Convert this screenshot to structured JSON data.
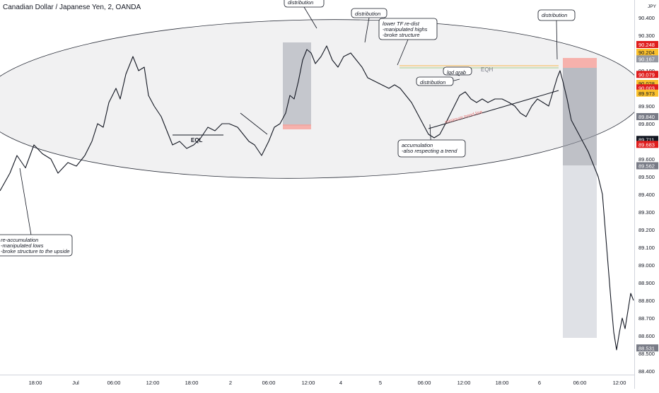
{
  "chart_title": "Canadian Dollar / Japanese Yen, 2, OANDA",
  "currency_unit": "JPY",
  "chart_data": {
    "type": "line",
    "title": "Canadian Dollar / Japanese Yen, 2, OANDA",
    "ylim": [
      88.4,
      90.45
    ],
    "y_ticks": [
      "90.400",
      "90.300",
      "90.100",
      "90.000",
      "89.900",
      "89.800",
      "89.700",
      "89.600",
      "89.500",
      "89.400",
      "89.300",
      "89.200",
      "89.100",
      "89.000",
      "88.900",
      "88.800",
      "88.700",
      "88.600",
      "88.500",
      "88.400"
    ],
    "x_tick_labels": [
      "18:00",
      "Jul",
      "06:00",
      "12:00",
      "18:00",
      "2",
      "06:00",
      "12:00",
      "4",
      "5",
      "06:00",
      "12:00",
      "18:00",
      "6",
      "06:00",
      "12:00"
    ],
    "price_tags": [
      {
        "value": "90.248",
        "color": "#e01d1d",
        "text_color": "#ffffff"
      },
      {
        "value": "90.204",
        "color": "#fbc02d",
        "text_color": "#131722"
      },
      {
        "value": "90.167",
        "color": "#9598a1",
        "text_color": "#ffffff"
      },
      {
        "value": "90.079",
        "color": "#e01d1d",
        "text_color": "#ffffff"
      },
      {
        "value": "90.028",
        "color": "#fbc02d",
        "text_color": "#131722"
      },
      {
        "value": "90.003",
        "color": "#e01d1d",
        "text_color": "#ffffff"
      },
      {
        "value": "89.973",
        "color": "#fbc02d",
        "text_color": "#131722"
      },
      {
        "value": "89.840",
        "color": "#787b86",
        "text_color": "#ffffff"
      },
      {
        "value": "89.711",
        "color": "#131722",
        "text_color": "#ffffff"
      },
      {
        "value": "89.683",
        "color": "#e01d1d",
        "text_color": "#ffffff"
      },
      {
        "value": "89.562",
        "color": "#787b86",
        "text_color": "#ffffff"
      },
      {
        "value": "88.531",
        "color": "#787b86",
        "text_color": "#ffffff"
      }
    ],
    "series": [
      {
        "points": [
          [
            0,
            89.42
          ],
          [
            14,
            89.52
          ],
          [
            24,
            89.62
          ],
          [
            36,
            89.55
          ],
          [
            48,
            89.68
          ],
          [
            60,
            89.63
          ],
          [
            72,
            89.6
          ],
          [
            82,
            89.52
          ],
          [
            96,
            89.58
          ],
          [
            108,
            89.56
          ],
          [
            120,
            89.62
          ],
          [
            130,
            89.7
          ],
          [
            138,
            89.8
          ],
          [
            146,
            89.78
          ],
          [
            154,
            89.92
          ],
          [
            164,
            90.0
          ],
          [
            170,
            89.94
          ],
          [
            178,
            90.08
          ],
          [
            188,
            90.18
          ],
          [
            196,
            90.1
          ],
          [
            204,
            90.12
          ],
          [
            210,
            89.96
          ],
          [
            218,
            89.9
          ],
          [
            228,
            89.84
          ],
          [
            236,
            89.76
          ],
          [
            244,
            89.68
          ],
          [
            254,
            89.7
          ],
          [
            264,
            89.66
          ],
          [
            274,
            89.68
          ],
          [
            284,
            89.72
          ],
          [
            294,
            89.78
          ],
          [
            304,
            89.76
          ],
          [
            314,
            89.8
          ],
          [
            324,
            89.8
          ],
          [
            336,
            89.78
          ],
          [
            344,
            89.74
          ],
          [
            352,
            89.7
          ],
          [
            360,
            89.68
          ],
          [
            370,
            89.62
          ],
          [
            380,
            89.7
          ],
          [
            388,
            89.78
          ],
          [
            396,
            89.8
          ],
          [
            404,
            89.86
          ],
          [
            410,
            89.96
          ],
          [
            416,
            89.94
          ],
          [
            422,
            90.04
          ],
          [
            428,
            90.16
          ],
          [
            434,
            90.22
          ],
          [
            440,
            90.2
          ],
          [
            446,
            90.14
          ],
          [
            454,
            90.18
          ],
          [
            462,
            90.24
          ],
          [
            470,
            90.16
          ],
          [
            478,
            90.12
          ],
          [
            486,
            90.18
          ],
          [
            496,
            90.2
          ],
          [
            504,
            90.16
          ],
          [
            512,
            90.12
          ],
          [
            520,
            90.06
          ],
          [
            530,
            90.04
          ],
          [
            540,
            90.02
          ],
          [
            550,
            90.0
          ],
          [
            558,
            90.02
          ],
          [
            566,
            90.0
          ],
          [
            574,
            89.96
          ],
          [
            582,
            89.92
          ],
          [
            590,
            89.86
          ],
          [
            598,
            89.8
          ],
          [
            606,
            89.74
          ],
          [
            614,
            89.72
          ],
          [
            622,
            89.74
          ],
          [
            630,
            89.8
          ],
          [
            640,
            89.88
          ],
          [
            650,
            89.96
          ],
          [
            658,
            89.98
          ],
          [
            666,
            89.94
          ],
          [
            674,
            89.92
          ],
          [
            682,
            89.94
          ],
          [
            690,
            89.92
          ],
          [
            700,
            89.94
          ],
          [
            710,
            89.94
          ],
          [
            720,
            89.92
          ],
          [
            728,
            89.9
          ],
          [
            736,
            89.86
          ],
          [
            744,
            89.84
          ],
          [
            752,
            89.9
          ],
          [
            760,
            89.94
          ],
          [
            768,
            89.92
          ],
          [
            776,
            89.9
          ],
          [
            782,
            89.98
          ],
          [
            788,
            90.06
          ],
          [
            792,
            90.1
          ],
          [
            796,
            90.04
          ],
          [
            802,
            89.94
          ],
          [
            808,
            89.82
          ],
          [
            816,
            89.76
          ],
          [
            824,
            89.7
          ],
          [
            832,
            89.64
          ],
          [
            840,
            89.56
          ],
          [
            846,
            89.5
          ],
          [
            852,
            89.4
          ],
          [
            856,
            89.2
          ],
          [
            860,
            89.0
          ],
          [
            864,
            88.8
          ],
          [
            868,
            88.62
          ],
          [
            872,
            88.52
          ],
          [
            876,
            88.62
          ],
          [
            880,
            88.7
          ],
          [
            884,
            88.64
          ],
          [
            888,
            88.74
          ],
          [
            892,
            88.84
          ],
          [
            896,
            88.8
          ]
        ]
      }
    ],
    "annotations": [
      {
        "text": "distribution"
      },
      {
        "text": "distribution"
      },
      {
        "text": "lower TF re-dist\n-manipulated highs\n-broke structure"
      },
      {
        "text": "distribution"
      },
      {
        "text": "lqd grab"
      },
      {
        "text": "distribution"
      },
      {
        "text": "accumulation\n-also respecting a trend"
      },
      {
        "text": "re-accumulation\n-manipulated lows\n-broke structure to the upside"
      },
      {
        "text": "EQL"
      },
      {
        "text": "EQH"
      },
      {
        "text": "minimum trend line"
      }
    ]
  }
}
